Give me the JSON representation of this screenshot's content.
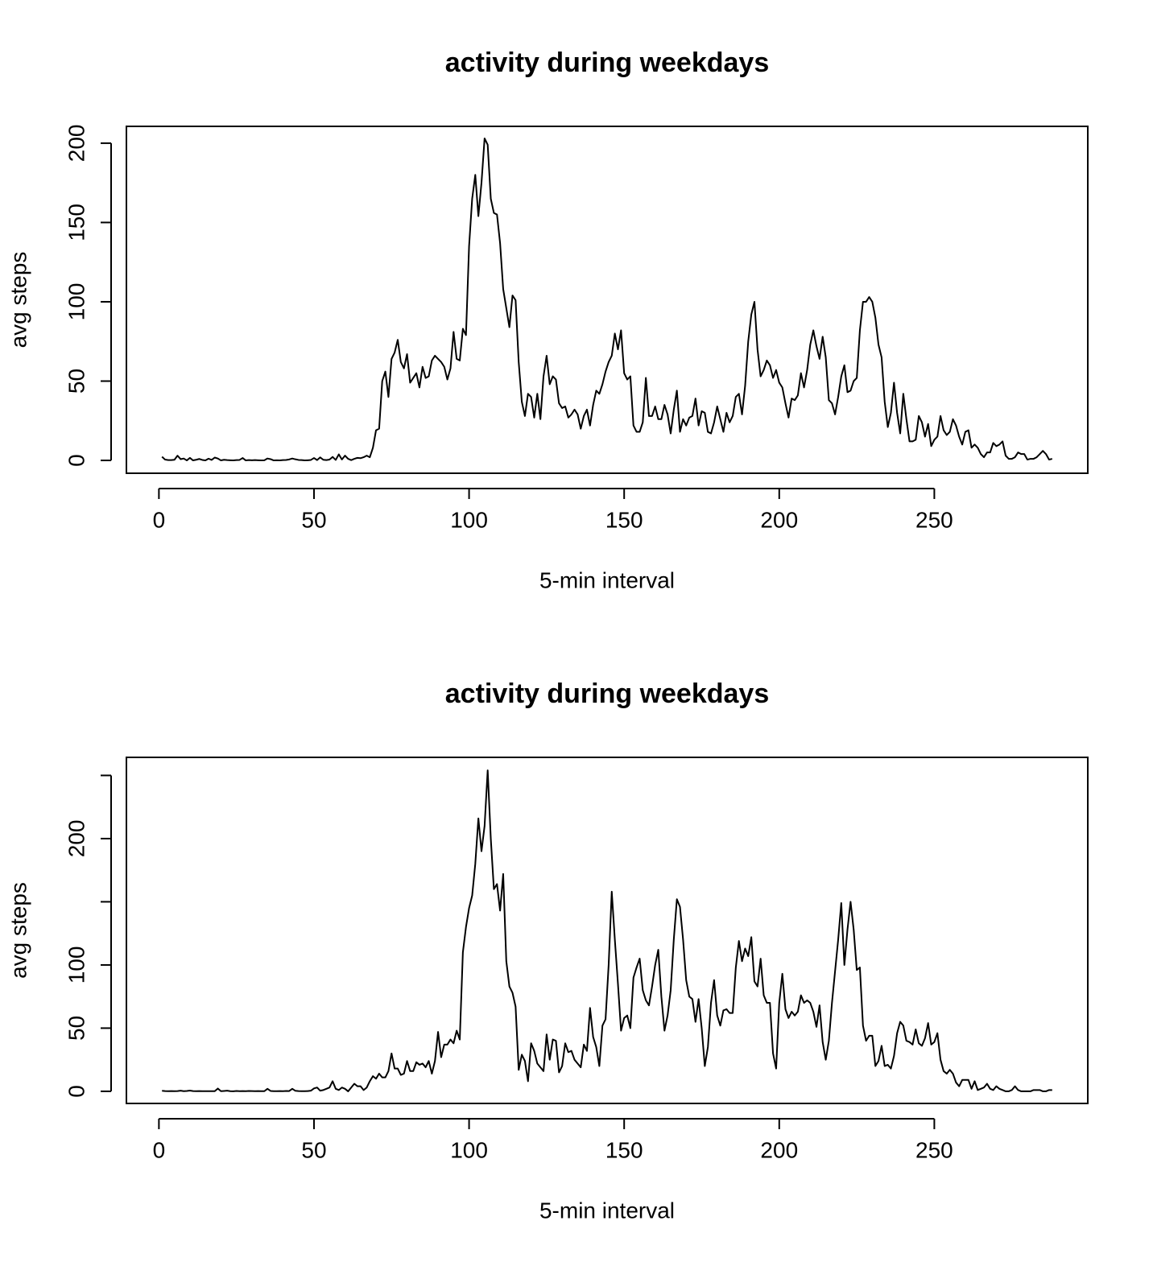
{
  "chart_data": [
    {
      "type": "line",
      "title": "activity during weekdays",
      "xlabel": "5-min interval",
      "ylabel": "avg steps",
      "x": [
        1,
        2,
        3,
        4,
        5,
        6,
        7,
        8,
        9,
        10,
        11,
        12,
        13,
        14,
        15,
        16,
        17,
        18,
        19,
        20,
        21,
        22,
        23,
        24,
        25,
        26,
        27,
        28,
        29,
        30,
        31,
        32,
        33,
        34,
        35,
        36,
        37,
        38,
        39,
        40,
        41,
        42,
        43,
        44,
        45,
        46,
        47,
        48,
        49,
        50,
        51,
        52,
        53,
        54,
        55,
        56,
        57,
        58,
        59,
        60,
        61,
        62,
        63,
        64,
        65,
        66,
        67,
        68,
        69,
        70,
        71,
        72,
        73,
        74,
        75,
        76,
        77,
        78,
        79,
        80,
        81,
        82,
        83,
        84,
        85,
        86,
        87,
        88,
        89,
        90,
        91,
        92,
        93,
        94,
        95,
        96,
        97,
        98,
        99,
        100,
        101,
        102,
        103,
        104,
        105,
        106,
        107,
        108,
        109,
        110,
        111,
        112,
        113,
        114,
        115,
        116,
        117,
        118,
        119,
        120,
        121,
        122,
        123,
        124,
        125,
        126,
        127,
        128,
        129,
        130,
        131,
        132,
        133,
        134,
        135,
        136,
        137,
        138,
        139,
        140,
        141,
        142,
        143,
        144,
        145,
        146,
        147,
        148,
        149,
        150,
        151,
        152,
        153,
        154,
        155,
        156,
        157,
        158,
        159,
        160,
        161,
        162,
        163,
        164,
        165,
        166,
        167,
        168,
        169,
        170,
        171,
        172,
        173,
        174,
        175,
        176,
        177,
        178,
        179,
        180,
        181,
        182,
        183,
        184,
        185,
        186,
        187,
        188,
        189,
        190,
        191,
        192,
        193,
        194,
        195,
        196,
        197,
        198,
        199,
        200,
        201,
        202,
        203,
        204,
        205,
        206,
        207,
        208,
        209,
        210,
        211,
        212,
        213,
        214,
        215,
        216,
        217,
        218,
        219,
        220,
        221,
        222,
        223,
        224,
        225,
        226,
        227,
        228,
        229,
        230,
        231,
        232,
        233,
        234,
        235,
        236,
        237,
        238,
        239,
        240,
        241,
        242,
        243,
        244,
        245,
        246,
        247,
        248,
        249,
        250,
        251,
        252,
        253,
        254,
        255,
        256,
        257,
        258,
        259,
        260,
        261,
        262,
        263,
        264,
        265,
        266,
        267,
        268,
        269,
        270,
        271,
        272,
        273,
        274,
        275,
        276,
        277,
        278,
        279,
        280,
        281,
        282,
        283,
        284,
        285,
        286,
        287,
        288
      ],
      "values": [
        2.3,
        0.5,
        0.2,
        0.2,
        0.4,
        3,
        0.8,
        1.2,
        0,
        1.6,
        0,
        0.4,
        0.9,
        0.3,
        0,
        1.1,
        0.3,
        1.8,
        1.2,
        0,
        0.4,
        0.2,
        0.1,
        0,
        0.2,
        0.3,
        1.5,
        0,
        0.2,
        0.1,
        0.2,
        0.1,
        0,
        0.1,
        1.2,
        0.8,
        0,
        0.1,
        0,
        0.2,
        0.3,
        0.6,
        1.2,
        0.7,
        0.3,
        0.2,
        0,
        0.1,
        0.3,
        1.5,
        0.2,
        1.9,
        0.4,
        0.2,
        0.5,
        2.2,
        0.3,
        3.8,
        0.6,
        3,
        1,
        0.2,
        1,
        1.6,
        1.4,
        2,
        3,
        2,
        8,
        19,
        20,
        50,
        56,
        40,
        64,
        68,
        76,
        62,
        58,
        67,
        49,
        52,
        55,
        46,
        59,
        52,
        53,
        63,
        66,
        64,
        62,
        59,
        51,
        58,
        81,
        64,
        63,
        83,
        79,
        135,
        165,
        180,
        154,
        175,
        203,
        199,
        165,
        156,
        155,
        137,
        108,
        96,
        84,
        104,
        101,
        62,
        37,
        28,
        42,
        40,
        27,
        42,
        26,
        53,
        66,
        48,
        53,
        51,
        36,
        33,
        34,
        27,
        29,
        32,
        29,
        20,
        28,
        32,
        22,
        35,
        44,
        42,
        48,
        56,
        62,
        66,
        80,
        70,
        82,
        55,
        51,
        53,
        22,
        18,
        18,
        24,
        52,
        28,
        28,
        34,
        26,
        26,
        35,
        29,
        17,
        32,
        44,
        18,
        26,
        22,
        27,
        28,
        39,
        22,
        31,
        30,
        18,
        17,
        24,
        34,
        26,
        18,
        30,
        24,
        28,
        40,
        42,
        29,
        47,
        75,
        92,
        100,
        70,
        53,
        57,
        63,
        60,
        52,
        57,
        49,
        46,
        36,
        27,
        39,
        38,
        41,
        55,
        46,
        57,
        73,
        82,
        72,
        64,
        78,
        65,
        38,
        36,
        29,
        40,
        53,
        60,
        43,
        44,
        50,
        52,
        82,
        100,
        100,
        103,
        100,
        90,
        73,
        65,
        37,
        21,
        30,
        49,
        30,
        17,
        42,
        26,
        12,
        12,
        13,
        28,
        24,
        15,
        23,
        9,
        13,
        15,
        28,
        19,
        16,
        18,
        26,
        22,
        15,
        10,
        18,
        19,
        8,
        10,
        8,
        4,
        2,
        5,
        5,
        11,
        9,
        10,
        12,
        3,
        1,
        1,
        2,
        5,
        4,
        4,
        0.5,
        1,
        1,
        2,
        4,
        6,
        4,
        0.5,
        1
      ],
      "color": "#000000",
      "xlim": [
        -10.48,
        299.48
      ],
      "xticks": [
        0,
        50,
        100,
        150,
        200,
        250
      ],
      "ylim": [
        -8.1,
        210.6
      ],
      "yticks": [
        0,
        50,
        100,
        150,
        200
      ]
    },
    {
      "type": "line",
      "title": "activity during weekdays",
      "xlabel": "5-min interval",
      "ylabel": "avg steps",
      "x": [
        1,
        2,
        3,
        4,
        5,
        6,
        7,
        8,
        9,
        10,
        11,
        12,
        13,
        14,
        15,
        16,
        17,
        18,
        19,
        20,
        21,
        22,
        23,
        24,
        25,
        26,
        27,
        28,
        29,
        30,
        31,
        32,
        33,
        34,
        35,
        36,
        37,
        38,
        39,
        40,
        41,
        42,
        43,
        44,
        45,
        46,
        47,
        48,
        49,
        50,
        51,
        52,
        53,
        54,
        55,
        56,
        57,
        58,
        59,
        60,
        61,
        62,
        63,
        64,
        65,
        66,
        67,
        68,
        69,
        70,
        71,
        72,
        73,
        74,
        75,
        76,
        77,
        78,
        79,
        80,
        81,
        82,
        83,
        84,
        85,
        86,
        87,
        88,
        89,
        90,
        91,
        92,
        93,
        94,
        95,
        96,
        97,
        98,
        99,
        100,
        101,
        102,
        103,
        104,
        105,
        106,
        107,
        108,
        109,
        110,
        111,
        112,
        113,
        114,
        115,
        116,
        117,
        118,
        119,
        120,
        121,
        122,
        123,
        124,
        125,
        126,
        127,
        128,
        129,
        130,
        131,
        132,
        133,
        134,
        135,
        136,
        137,
        138,
        139,
        140,
        141,
        142,
        143,
        144,
        145,
        146,
        147,
        148,
        149,
        150,
        151,
        152,
        153,
        154,
        155,
        156,
        157,
        158,
        159,
        160,
        161,
        162,
        163,
        164,
        165,
        166,
        167,
        168,
        169,
        170,
        171,
        172,
        173,
        174,
        175,
        176,
        177,
        178,
        179,
        180,
        181,
        182,
        183,
        184,
        185,
        186,
        187,
        188,
        189,
        190,
        191,
        192,
        193,
        194,
        195,
        196,
        197,
        198,
        199,
        200,
        201,
        202,
        203,
        204,
        205,
        206,
        207,
        208,
        209,
        210,
        211,
        212,
        213,
        214,
        215,
        216,
        217,
        218,
        219,
        220,
        221,
        222,
        223,
        224,
        225,
        226,
        227,
        228,
        229,
        230,
        231,
        232,
        233,
        234,
        235,
        236,
        237,
        238,
        239,
        240,
        241,
        242,
        243,
        244,
        245,
        246,
        247,
        248,
        249,
        250,
        251,
        252,
        253,
        254,
        255,
        256,
        257,
        258,
        259,
        260,
        261,
        262,
        263,
        264,
        265,
        266,
        267,
        268,
        269,
        270,
        271,
        272,
        273,
        274,
        275,
        276,
        277,
        278,
        279,
        280,
        281,
        282,
        283,
        284,
        285,
        286,
        287,
        288
      ],
      "values": [
        0.4,
        0.2,
        0.1,
        0.2,
        0.1,
        0.2,
        0.5,
        0.1,
        0.3,
        0.6,
        0.2,
        0.1,
        0.2,
        0.1,
        0.1,
        0.1,
        0.1,
        0.1,
        2.2,
        0.1,
        0.3,
        0.5,
        0.1,
        0,
        0.3,
        0.1,
        0.2,
        0.1,
        0.3,
        0.2,
        0.1,
        0.2,
        0.1,
        0.1,
        2,
        0.3,
        0.1,
        0.1,
        0.2,
        0.1,
        0.3,
        0.2,
        2,
        0.4,
        0.2,
        0.1,
        0.1,
        0.2,
        0.5,
        2.3,
        3,
        0.5,
        1,
        2,
        3,
        8,
        2,
        1,
        3,
        2,
        0,
        3,
        6,
        4,
        4,
        1,
        3,
        8,
        12,
        10,
        14,
        11,
        11,
        16,
        30,
        18,
        18,
        13,
        14,
        24,
        16,
        16,
        23,
        21,
        22,
        19,
        24,
        14,
        24,
        47,
        27,
        37,
        37,
        41,
        38,
        48,
        41,
        110,
        130,
        145,
        155,
        180,
        216,
        190,
        210,
        254,
        200,
        160,
        164,
        143,
        172,
        103,
        83,
        78,
        67,
        17,
        29,
        24,
        8,
        38,
        32,
        22,
        19,
        16,
        45,
        25,
        41,
        40,
        15,
        20,
        38,
        31,
        32,
        25,
        22,
        19,
        37,
        32,
        66,
        43,
        35,
        20,
        52,
        57,
        100,
        158,
        120,
        85,
        48,
        58,
        60,
        50,
        90,
        98,
        105,
        80,
        72,
        68,
        83,
        100,
        112,
        75,
        48,
        60,
        80,
        120,
        152,
        146,
        120,
        88,
        75,
        73,
        55,
        73,
        50,
        20,
        35,
        70,
        88,
        60,
        52,
        64,
        65,
        62,
        62,
        98,
        119,
        103,
        113,
        107,
        122,
        87,
        83,
        105,
        76,
        70,
        70,
        30,
        18,
        70,
        93,
        65,
        58,
        63,
        60,
        63,
        76,
        70,
        72,
        70,
        63,
        51,
        68,
        39,
        25,
        40,
        70,
        95,
        120,
        149,
        100,
        128,
        150,
        128,
        96,
        98,
        52,
        40,
        44,
        44,
        20,
        24,
        36,
        20,
        21,
        18,
        28,
        46,
        55,
        52,
        40,
        39,
        37,
        49,
        38,
        36,
        42,
        54,
        37,
        39,
        46,
        25,
        16,
        14,
        17,
        14,
        7,
        4,
        9,
        9,
        9,
        2,
        8,
        1,
        2,
        3,
        6,
        2,
        1,
        4,
        2,
        1,
        0,
        0,
        1,
        4,
        1,
        0,
        0,
        0,
        0,
        1,
        1,
        1,
        0,
        0,
        1,
        1
      ],
      "color": "#000000",
      "xlim": [
        -10.48,
        299.48
      ],
      "xticks": [
        0,
        50,
        100,
        150,
        200,
        250
      ],
      "ylim": [
        -9.6,
        264.3
      ],
      "yticks": [
        0,
        50,
        100,
        {
          "value": 150,
          "label": null
        },
        200,
        {
          "value": 250,
          "label": null
        }
      ]
    }
  ]
}
